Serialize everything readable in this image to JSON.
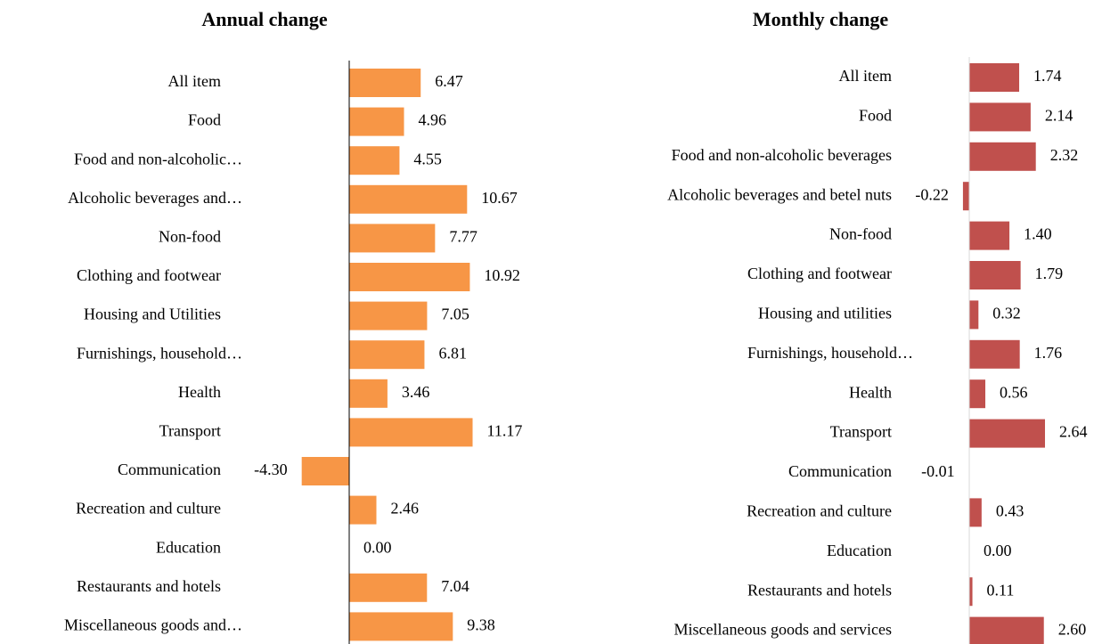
{
  "chart_data": [
    {
      "type": "bar",
      "orientation": "horizontal",
      "title": "Annual change",
      "color": "#f79646",
      "categories": [
        "All item",
        "Food",
        "Food and non-alcoholic…",
        "Alcoholic beverages and…",
        "Non-food",
        "Clothing and footwear",
        "Housing and Utilities",
        "Furnishings, household…",
        "Health",
        "Transport",
        "Communication",
        "Recreation and culture",
        "Education",
        "Restaurants and hotels",
        "Miscellaneous goods and…"
      ],
      "values": [
        6.47,
        4.96,
        4.55,
        10.67,
        7.77,
        10.92,
        7.05,
        6.81,
        3.46,
        11.17,
        -4.3,
        2.46,
        0,
        7.04,
        9.38
      ],
      "value_labels": [
        "6.47",
        "4.96",
        "4.55",
        "10.67",
        "7.77",
        "10.92",
        "7.05",
        "6.81",
        "3.46",
        "11.17",
        "-4.30",
        "2.46",
        "0.00",
        "7.04",
        "9.38"
      ]
    },
    {
      "type": "bar",
      "orientation": "horizontal",
      "title": "Monthly change",
      "color": "#c0504d",
      "categories": [
        "All item",
        "Food",
        "Food and non-alcoholic beverages",
        "Alcoholic beverages and betel nuts",
        "Non-food",
        "Clothing and footwear",
        "Housing and utilities",
        "Furnishings, household…",
        "Health",
        "Transport",
        "Communication",
        "Recreation and culture",
        "Education",
        "Restaurants and hotels",
        "Miscellaneous goods and services"
      ],
      "values": [
        1.74,
        2.14,
        2.32,
        -0.22,
        1.4,
        1.79,
        0.32,
        1.76,
        0.56,
        2.64,
        -0.01,
        0.43,
        0,
        0.11,
        2.6
      ],
      "value_labels": [
        "1.74",
        "2.14",
        "2.32",
        "-0.22",
        "1.40",
        "1.79",
        "0.32",
        "1.76",
        "0.56",
        "2.64",
        "-0.01",
        "0.43",
        "0.00",
        "0.11",
        "2.60"
      ]
    }
  ]
}
